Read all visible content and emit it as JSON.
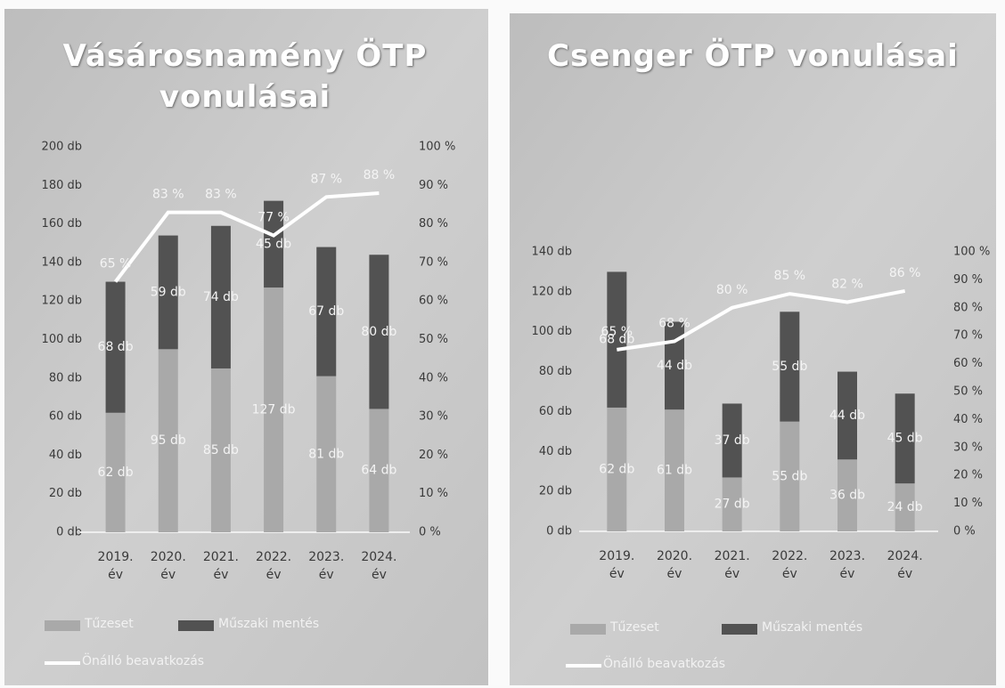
{
  "chart_data": [
    {
      "type": "bar",
      "title": "Vásárosnamény ÖTP vonulásai",
      "categories": [
        "2019. év",
        "2020. év",
        "2021. év",
        "2022. év",
        "2023. év",
        "2024. év"
      ],
      "series": [
        {
          "name": "Tűzeset",
          "color": "#a9a9a9",
          "values": [
            62,
            95,
            85,
            127,
            81,
            64
          ],
          "value_labels": [
            "62 db",
            "95 db",
            "85 db",
            "127 db",
            "81 db",
            "64 db"
          ]
        },
        {
          "name": "Műszaki mentés",
          "color": "#525252",
          "values": [
            68,
            59,
            74,
            45,
            67,
            80
          ],
          "value_labels": [
            "68 db",
            "59 db",
            "74 db",
            "45 db",
            "67 db",
            "80 db"
          ]
        },
        {
          "name": "Önálló beavatkozás",
          "color": "#ffffff",
          "axis": "y2",
          "values": [
            65,
            83,
            83,
            77,
            87,
            88
          ],
          "value_labels": [
            "65 %",
            "83 %",
            "83 %",
            "77 %",
            "87 %",
            "88 %"
          ]
        }
      ],
      "stacked": true,
      "ylim": [
        0,
        200
      ],
      "yticks": [
        {
          "value": 0,
          "label": "0 db"
        },
        {
          "value": 20,
          "label": "20 db"
        },
        {
          "value": 40,
          "label": "40 db"
        },
        {
          "value": 60,
          "label": "60 db"
        },
        {
          "value": 80,
          "label": "80 db"
        },
        {
          "value": 100,
          "label": "100 db"
        },
        {
          "value": 120,
          "label": "120 db"
        },
        {
          "value": 140,
          "label": "140 db"
        },
        {
          "value": 160,
          "label": "160 db"
        },
        {
          "value": 180,
          "label": "180 db"
        },
        {
          "value": 200,
          "label": "200 db"
        }
      ],
      "y2lim": [
        0,
        100
      ],
      "y2ticks": [
        {
          "value": 0,
          "label": "0 %"
        },
        {
          "value": 10,
          "label": "10 %"
        },
        {
          "value": 20,
          "label": "20 %"
        },
        {
          "value": 30,
          "label": "30 %"
        },
        {
          "value": 40,
          "label": "40 %"
        },
        {
          "value": 50,
          "label": "50 %"
        },
        {
          "value": 60,
          "label": "60 %"
        },
        {
          "value": 70,
          "label": "70 %"
        },
        {
          "value": 80,
          "label": "80 %"
        },
        {
          "value": 90,
          "label": "90 %"
        },
        {
          "value": 100,
          "label": "100 %"
        }
      ],
      "legend": "bottom"
    },
    {
      "type": "bar",
      "title": "Csenger ÖTP vonulásai",
      "categories": [
        "2019. év",
        "2020. év",
        "2021. év",
        "2022. év",
        "2023. év",
        "2024. év"
      ],
      "series": [
        {
          "name": "Tűzeset",
          "color": "#a9a9a9",
          "values": [
            62,
            61,
            27,
            55,
            36,
            24
          ],
          "value_labels": [
            "62 db",
            "61 db",
            "27 db",
            "55 db",
            "36 db",
            "24 db"
          ]
        },
        {
          "name": "Műszaki mentés",
          "color": "#525252",
          "values": [
            68,
            44,
            37,
            55,
            44,
            45
          ],
          "value_labels": [
            "68 db",
            "44 db",
            "37 db",
            "55 db",
            "44 db",
            "45 db"
          ]
        },
        {
          "name": "Önálló beavatkozás",
          "color": "#ffffff",
          "axis": "y2",
          "values": [
            65,
            68,
            80,
            85,
            82,
            86
          ],
          "value_labels": [
            "65 %",
            "68 %",
            "80 %",
            "85 %",
            "82 %",
            "86 %"
          ]
        }
      ],
      "stacked": true,
      "ylim": [
        0,
        140
      ],
      "yticks": [
        {
          "value": 0,
          "label": "0 db"
        },
        {
          "value": 20,
          "label": "20 db"
        },
        {
          "value": 40,
          "label": "40 db"
        },
        {
          "value": 60,
          "label": "60 db"
        },
        {
          "value": 80,
          "label": "80 db"
        },
        {
          "value": 100,
          "label": "100 db"
        },
        {
          "value": 120,
          "label": "120 db"
        },
        {
          "value": 140,
          "label": "140 db"
        }
      ],
      "y2lim": [
        0,
        100
      ],
      "y2ticks": [
        {
          "value": 0,
          "label": "0 %"
        },
        {
          "value": 10,
          "label": "10 %"
        },
        {
          "value": 20,
          "label": "20 %"
        },
        {
          "value": 30,
          "label": "30 %"
        },
        {
          "value": 40,
          "label": "40 %"
        },
        {
          "value": 50,
          "label": "50 %"
        },
        {
          "value": 60,
          "label": "60 %"
        },
        {
          "value": 70,
          "label": "70 %"
        },
        {
          "value": 80,
          "label": "80 %"
        },
        {
          "value": 90,
          "label": "90 %"
        },
        {
          "value": 100,
          "label": "100 %"
        }
      ],
      "legend": "bottom"
    }
  ]
}
